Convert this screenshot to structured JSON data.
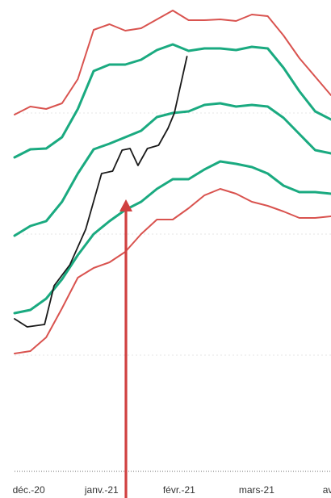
{
  "chart_data": {
    "type": "line",
    "x_ticks": [
      "déc.-20",
      "janv.-21",
      "févr.-21",
      "mars-21",
      "av"
    ],
    "x_range": [
      0,
      20
    ],
    "ylim": [
      0,
      590
    ],
    "grid": true,
    "legend": "none",
    "series": [
      {
        "role": "upper-outer-band",
        "color": "#d9534f",
        "x": [
          0,
          1,
          2,
          3,
          4,
          5,
          6,
          7,
          8,
          9,
          10,
          11,
          12,
          13,
          14,
          15,
          16,
          17,
          18,
          19,
          20
        ],
        "y": [
          448,
          458,
          455,
          462,
          492,
          553,
          560,
          552,
          555,
          566,
          577,
          565,
          565,
          566,
          564,
          572,
          570,
          546,
          518,
          495,
          472
        ]
      },
      {
        "role": "upper-inner-band",
        "color": "#1aaa80",
        "x": [
          0,
          1,
          2,
          3,
          4,
          5,
          6,
          7,
          8,
          9,
          10,
          11,
          12,
          13,
          14,
          15,
          16,
          17,
          18,
          19,
          20
        ],
        "y": [
          395,
          405,
          406,
          420,
          455,
          502,
          510,
          510,
          516,
          528,
          535,
          527,
          530,
          530,
          528,
          532,
          530,
          506,
          477,
          452,
          442
        ]
      },
      {
        "role": "central-trend",
        "color": "#1aaa80",
        "x": [
          0,
          1,
          2,
          3,
          4,
          5,
          6,
          7,
          8,
          9,
          10,
          11,
          12,
          13,
          14,
          15,
          16,
          17,
          18,
          19,
          20
        ],
        "y": [
          298,
          310,
          316,
          340,
          375,
          405,
          412,
          420,
          428,
          445,
          450,
          452,
          460,
          462,
          458,
          460,
          458,
          444,
          424,
          404,
          400
        ]
      },
      {
        "role": "lower-inner-band",
        "color": "#1aaa80",
        "x": [
          0,
          1,
          2,
          3,
          4,
          5,
          6,
          7,
          8,
          9,
          10,
          11,
          12,
          13,
          14,
          15,
          16,
          17,
          18,
          19,
          20
        ],
        "y": [
          202,
          206,
          220,
          244,
          274,
          300,
          316,
          330,
          340,
          356,
          368,
          368,
          380,
          390,
          387,
          383,
          375,
          360,
          352,
          352,
          350
        ]
      },
      {
        "role": "lower-outer-band",
        "color": "#d9534f",
        "x": [
          0,
          1,
          2,
          3,
          4,
          5,
          6,
          7,
          8,
          9,
          10,
          11,
          12,
          13,
          14,
          15,
          16,
          17,
          18,
          19,
          20
        ],
        "y": [
          152,
          155,
          172,
          208,
          246,
          258,
          265,
          278,
          300,
          318,
          318,
          332,
          348,
          356,
          350,
          340,
          335,
          328,
          320,
          320,
          322
        ]
      },
      {
        "role": "observed",
        "color": "#1a1a1a",
        "x": [
          0,
          0.8,
          1.9,
          2.5,
          3.5,
          4.5,
          5.5,
          6.2,
          6.8,
          7.3,
          7.8,
          8.4,
          9.1,
          9.7,
          10.1,
          10.9
        ],
        "y": [
          195,
          185,
          188,
          236,
          262,
          306,
          375,
          378,
          404,
          406,
          385,
          406,
          410,
          431,
          450,
          520
        ]
      }
    ]
  },
  "annotation": {
    "type": "arrow",
    "color": "#d04040",
    "points_to": "observed-series"
  }
}
